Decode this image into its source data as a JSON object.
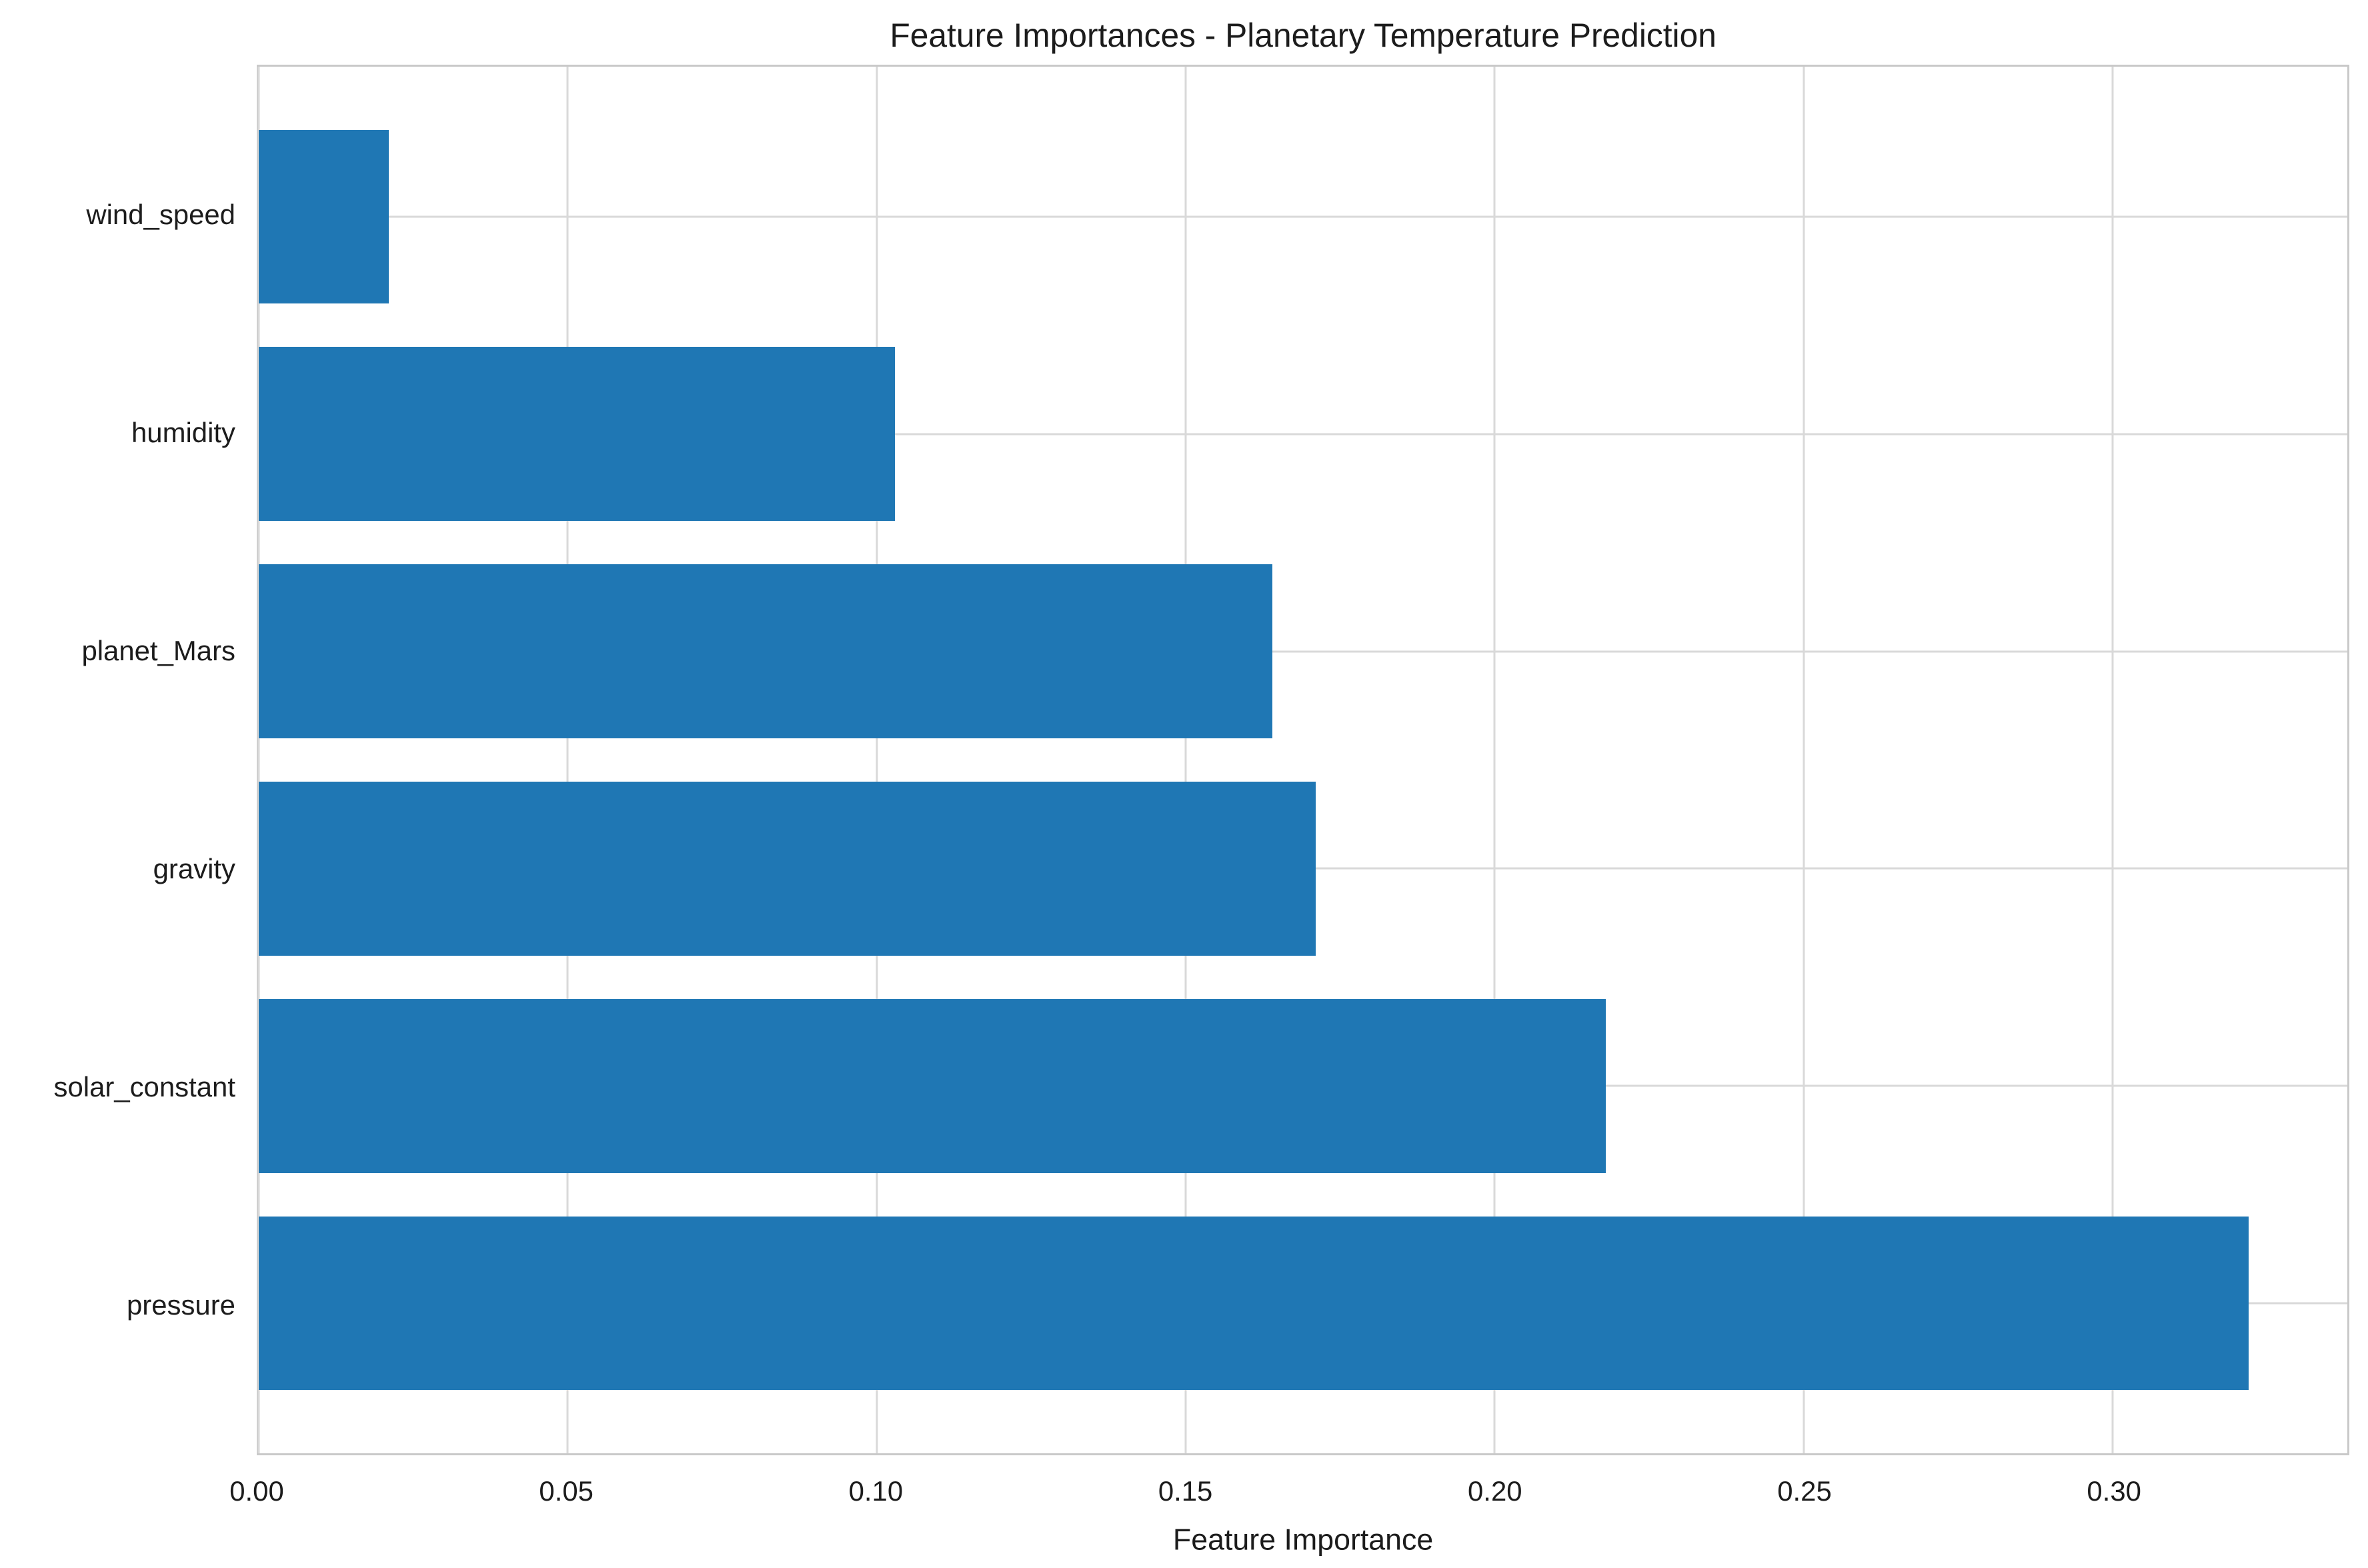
{
  "chart_data": {
    "type": "bar",
    "orientation": "horizontal",
    "title": "Feature Importances - Planetary Temperature Prediction",
    "xlabel": "Feature Importance",
    "ylabel": "",
    "categories": [
      "wind_speed",
      "humidity",
      "planet_Mars",
      "gravity",
      "solar_constant",
      "pressure"
    ],
    "values": [
      0.021,
      0.103,
      0.164,
      0.171,
      0.218,
      0.322
    ],
    "xlim": [
      0,
      0.338
    ],
    "xticks": [
      0.0,
      0.05,
      0.1,
      0.15,
      0.2,
      0.25,
      0.3
    ],
    "xtick_labels": [
      "0.00",
      "0.05",
      "0.10",
      "0.15",
      "0.20",
      "0.25",
      "0.30"
    ],
    "grid": true,
    "legend": "none",
    "bar_band_fraction": 0.8,
    "colors": {
      "bar": "#1f77b4",
      "grid": "#d9d9d9",
      "spine": "#c9c9c9",
      "text": "#1c1c1c",
      "background": "#ffffff"
    }
  }
}
